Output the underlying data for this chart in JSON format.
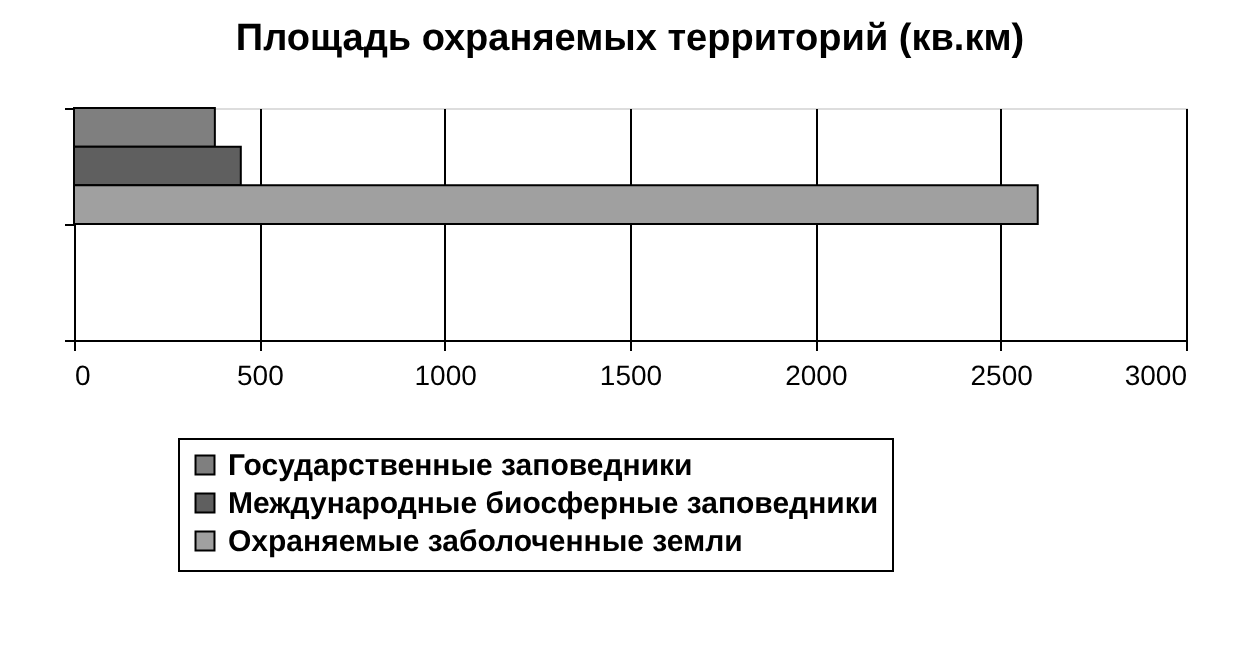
{
  "chart_data": {
    "type": "bar",
    "orientation": "horizontal",
    "title": "Площадь охраняемых территорий (кв.км)",
    "categories": [
      null,
      null
    ],
    "series": [
      {
        "name": "Государственные заповедники",
        "color": "#7f7f7f",
        "values": [
          380,
          null
        ]
      },
      {
        "name": "Международные биосферные заповедники",
        "color": "#5f5f5f",
        "values": [
          450,
          null
        ]
      },
      {
        "name": "Охраняемые заболоченные земли",
        "color": "#a0a0a0",
        "values": [
          2600,
          null
        ]
      }
    ],
    "xlim": [
      0,
      3000
    ],
    "xticks": [
      0,
      500,
      1000,
      1500,
      2000,
      2500,
      3000
    ],
    "grid": "x",
    "legend": "bottom"
  }
}
